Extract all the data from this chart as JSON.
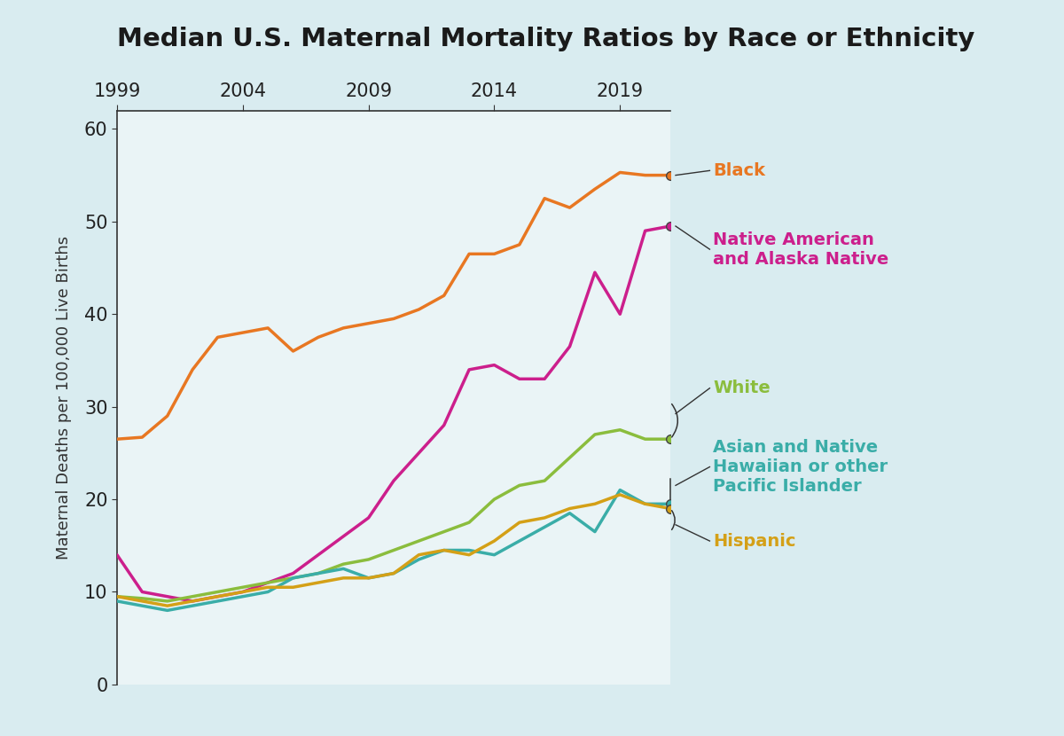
{
  "title": "Median U.S. Maternal Mortality Ratios by Race or Ethnicity",
  "ylabel": "Maternal Deaths per 100,000 Live Births",
  "years": [
    1999,
    2000,
    2001,
    2002,
    2003,
    2004,
    2005,
    2006,
    2007,
    2008,
    2009,
    2010,
    2011,
    2012,
    2013,
    2014,
    2015,
    2016,
    2017,
    2018,
    2019,
    2020,
    2021
  ],
  "series": {
    "Black": {
      "color": "#E87722",
      "values": [
        26.5,
        26.7,
        29.0,
        34.0,
        37.5,
        38.0,
        38.5,
        36.0,
        37.5,
        38.5,
        39.0,
        39.5,
        40.5,
        42.0,
        46.5,
        46.5,
        47.5,
        52.5,
        51.5,
        53.5,
        55.3,
        55.0,
        55.0
      ]
    },
    "Native American and Alaska Native": {
      "color": "#CC1F8C",
      "values": [
        14.0,
        10.0,
        9.5,
        9.0,
        9.5,
        10.0,
        11.0,
        12.0,
        14.0,
        16.0,
        18.0,
        22.0,
        25.0,
        28.0,
        34.0,
        34.5,
        33.0,
        33.0,
        36.5,
        44.5,
        40.0,
        49.0,
        49.5
      ]
    },
    "White": {
      "color": "#8BBD3D",
      "values": [
        9.5,
        9.3,
        9.0,
        9.5,
        10.0,
        10.5,
        11.0,
        11.5,
        12.0,
        13.0,
        13.5,
        14.5,
        15.5,
        16.5,
        17.5,
        20.0,
        21.5,
        22.0,
        24.5,
        27.0,
        27.5,
        26.5,
        26.5
      ]
    },
    "Asian and Native Hawaiian or other Pacific Islander": {
      "color": "#3AADA8",
      "values": [
        9.0,
        8.5,
        8.0,
        8.5,
        9.0,
        9.5,
        10.0,
        11.5,
        12.0,
        12.5,
        11.5,
        12.0,
        13.5,
        14.5,
        14.5,
        14.0,
        15.5,
        17.0,
        18.5,
        16.5,
        21.0,
        19.5,
        19.5
      ]
    },
    "Hispanic": {
      "color": "#D4A017",
      "values": [
        9.5,
        9.0,
        8.5,
        9.0,
        9.5,
        10.0,
        10.5,
        10.5,
        11.0,
        11.5,
        11.5,
        12.0,
        14.0,
        14.5,
        14.0,
        15.5,
        17.5,
        18.0,
        19.0,
        19.5,
        20.5,
        19.5,
        19.0
      ]
    }
  },
  "xlim": [
    1999,
    2021
  ],
  "ylim": [
    0,
    62
  ],
  "xtick_years": [
    1999,
    2004,
    2009,
    2014,
    2019
  ],
  "ytick_values": [
    0,
    10,
    20,
    30,
    40,
    50,
    60
  ],
  "title_fontsize": 21,
  "label_fontsize": 13,
  "tick_fontsize": 15,
  "annotation_fontsize": 14,
  "line_width": 2.5
}
